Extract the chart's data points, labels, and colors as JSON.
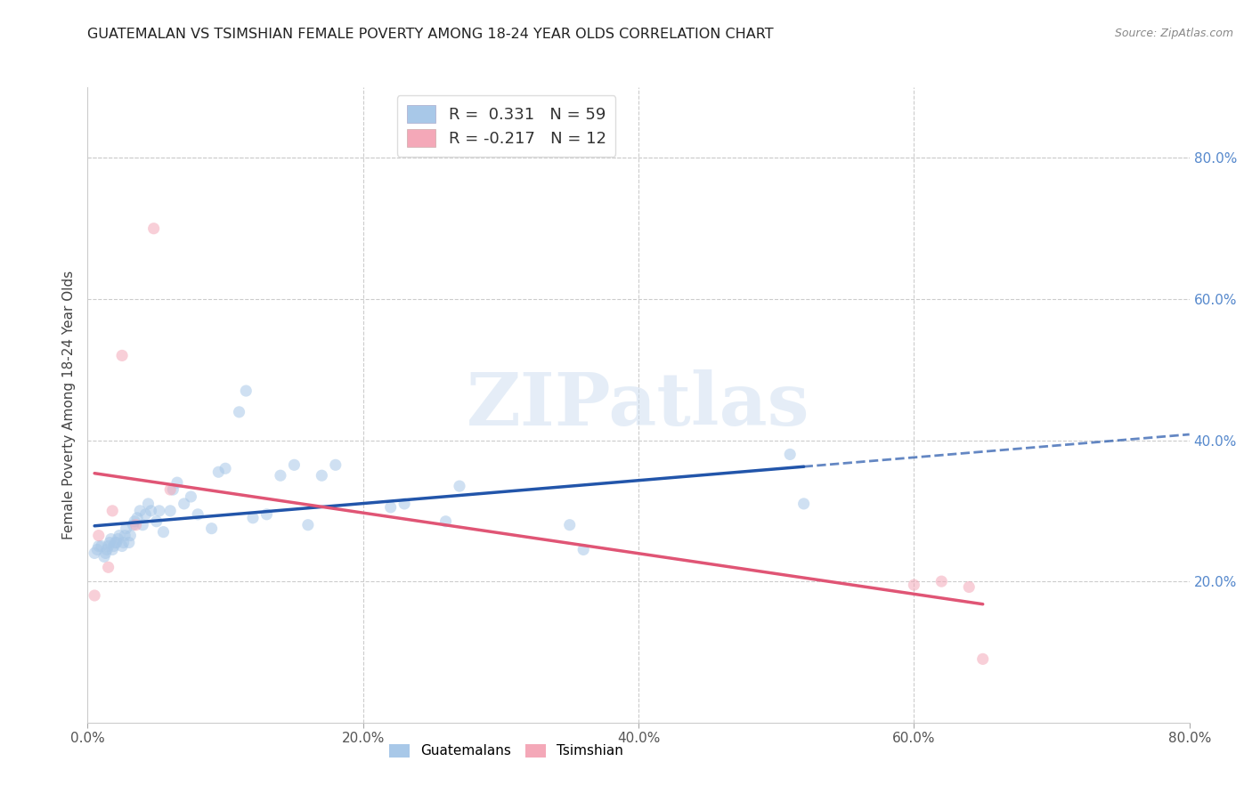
{
  "title": "GUATEMALAN VS TSIMSHIAN FEMALE POVERTY AMONG 18-24 YEAR OLDS CORRELATION CHART",
  "source": "Source: ZipAtlas.com",
  "ylabel": "Female Poverty Among 18-24 Year Olds",
  "xlim": [
    0.0,
    0.8
  ],
  "ylim": [
    0.0,
    0.9
  ],
  "x_ticks": [
    0.0,
    0.2,
    0.4,
    0.6,
    0.8
  ],
  "x_tick_labels": [
    "0.0%",
    "20.0%",
    "40.0%",
    "60.0%",
    "80.0%"
  ],
  "y_tick_vals": [
    0.2,
    0.4,
    0.6,
    0.8
  ],
  "y_tick_labels_right": [
    "20.0%",
    "40.0%",
    "60.0%",
    "80.0%"
  ],
  "guatemalan_color": "#a8c8e8",
  "tsimshian_color": "#f4a8b8",
  "guatemalan_line_color": "#2255aa",
  "tsimshian_line_color": "#e05575",
  "R_guatemalan": 0.331,
  "N_guatemalan": 59,
  "R_tsimshian": -0.217,
  "N_tsimshian": 12,
  "guatemalan_x": [
    0.005,
    0.007,
    0.008,
    0.01,
    0.012,
    0.013,
    0.014,
    0.015,
    0.016,
    0.017,
    0.018,
    0.019,
    0.02,
    0.021,
    0.022,
    0.023,
    0.025,
    0.026,
    0.027,
    0.028,
    0.03,
    0.031,
    0.033,
    0.034,
    0.036,
    0.038,
    0.04,
    0.042,
    0.044,
    0.046,
    0.05,
    0.052,
    0.055,
    0.06,
    0.062,
    0.065,
    0.07,
    0.075,
    0.08,
    0.09,
    0.095,
    0.1,
    0.11,
    0.115,
    0.12,
    0.13,
    0.14,
    0.15,
    0.16,
    0.17,
    0.18,
    0.22,
    0.23,
    0.26,
    0.27,
    0.35,
    0.36,
    0.51,
    0.52
  ],
  "guatemalan_y": [
    0.24,
    0.245,
    0.25,
    0.25,
    0.235,
    0.24,
    0.245,
    0.25,
    0.255,
    0.26,
    0.245,
    0.25,
    0.255,
    0.255,
    0.26,
    0.265,
    0.25,
    0.255,
    0.265,
    0.275,
    0.255,
    0.265,
    0.28,
    0.285,
    0.29,
    0.3,
    0.28,
    0.295,
    0.31,
    0.3,
    0.285,
    0.3,
    0.27,
    0.3,
    0.33,
    0.34,
    0.31,
    0.32,
    0.295,
    0.275,
    0.355,
    0.36,
    0.44,
    0.47,
    0.29,
    0.295,
    0.35,
    0.365,
    0.28,
    0.35,
    0.365,
    0.305,
    0.31,
    0.285,
    0.335,
    0.28,
    0.245,
    0.38,
    0.31
  ],
  "tsimshian_x": [
    0.005,
    0.008,
    0.015,
    0.018,
    0.025,
    0.035,
    0.048,
    0.06,
    0.6,
    0.62,
    0.64,
    0.65
  ],
  "tsimshian_y": [
    0.18,
    0.265,
    0.22,
    0.3,
    0.52,
    0.28,
    0.7,
    0.33,
    0.195,
    0.2,
    0.192,
    0.09
  ],
  "watermark_text": "ZIPatlas",
  "marker_size": 90,
  "marker_alpha": 0.55,
  "grid_color": "#cccccc",
  "background_color": "#ffffff"
}
